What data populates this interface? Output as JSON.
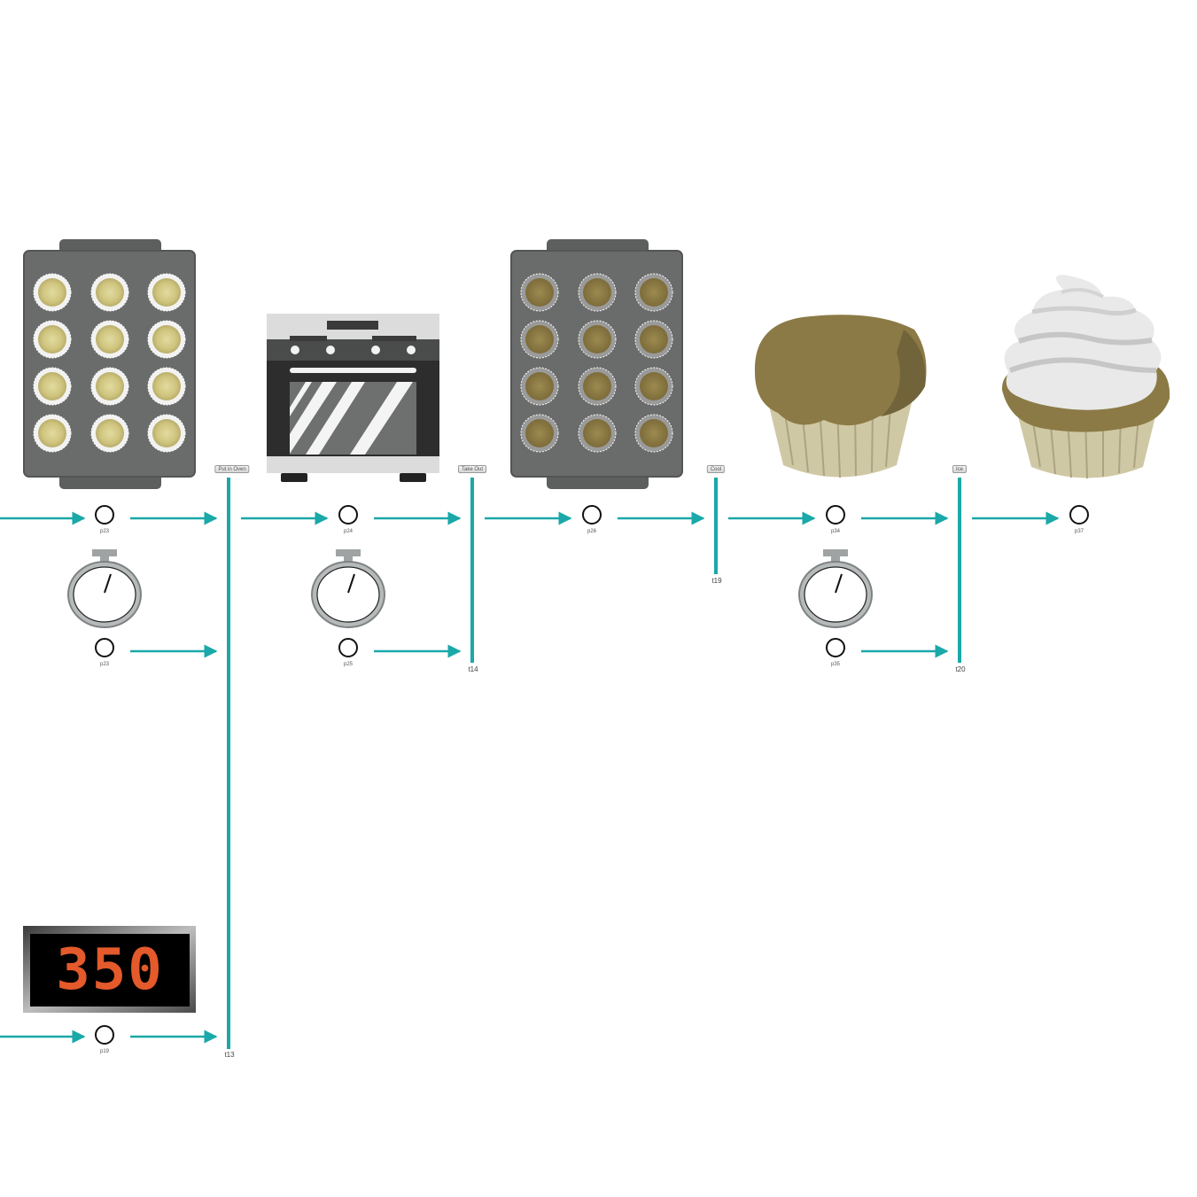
{
  "transitions": [
    {
      "id": "t13",
      "label": "Put in Oven"
    },
    {
      "id": "t14",
      "label": "Take Out"
    },
    {
      "id": "t19",
      "label": "Cool"
    },
    {
      "id": "t20",
      "label": "Ice"
    }
  ],
  "places": [
    {
      "id": "p23a",
      "label": "p23"
    },
    {
      "id": "p24",
      "label": "p24"
    },
    {
      "id": "p26",
      "label": "p26"
    },
    {
      "id": "p34",
      "label": "p34"
    },
    {
      "id": "p37",
      "label": "p37"
    },
    {
      "id": "p23b",
      "label": "p23"
    },
    {
      "id": "p25",
      "label": "p25"
    },
    {
      "id": "p35",
      "label": "p35"
    },
    {
      "id": "p19",
      "label": "p19"
    }
  ],
  "oven_display": {
    "value": "350"
  },
  "colors": {
    "arc": "#1aa8a8",
    "pan": "#6a6b6b",
    "batter": "#d8d08f",
    "baked": "#8b7a45",
    "frosting": "#e8e8e8",
    "display_digits": "#e45a2b"
  },
  "icons": [
    "muffin-pan-raw-icon",
    "oven-icon",
    "muffin-pan-baked-icon",
    "cupcake-icon",
    "frosted-cupcake-icon",
    "stopwatch-icon",
    "temperature-display-icon"
  ]
}
